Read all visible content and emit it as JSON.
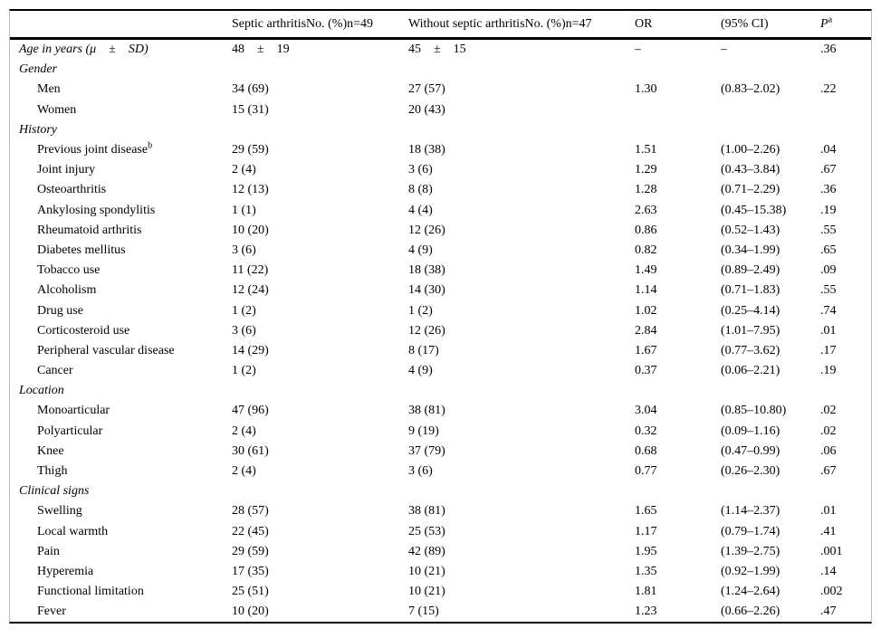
{
  "header": {
    "col_label": "",
    "col_septic": "Septic arthritisNo. (%)n=49",
    "col_without": "Without septic arthritisNo. (%)n=47",
    "col_or": "OR",
    "col_ci": "(95% CI)",
    "col_p": "P",
    "col_p_sup": "a"
  },
  "rows": [
    {
      "label": "Age in years (μ ± SD)",
      "italic": true,
      "indent": false,
      "c1": "48 ± 19",
      "c2": "45 ± 15",
      "or": "–",
      "ci": "–",
      "p": ".36"
    },
    {
      "label": "Gender",
      "italic": true,
      "section": true
    },
    {
      "label": "Men",
      "indent": true,
      "c1": "34 (69)",
      "c2": "27 (57)",
      "or": "1.30",
      "ci": "(0.83–2.02)",
      "p": ".22"
    },
    {
      "label": "Women",
      "indent": true,
      "c1": "15 (31)",
      "c2": "20 (43)",
      "or": "",
      "ci": "",
      "p": ""
    },
    {
      "label": "History",
      "italic": true,
      "section": true
    },
    {
      "label": "Previous joint disease",
      "sup": "b",
      "indent": true,
      "c1": "29 (59)",
      "c2": "18 (38)",
      "or": "1.51",
      "ci": "(1.00–2.26)",
      "p": ".04"
    },
    {
      "label": "Joint injury",
      "indent": true,
      "c1": "2 (4)",
      "c2": "3 (6)",
      "or": "1.29",
      "ci": "(0.43–3.84)",
      "p": ".67"
    },
    {
      "label": "Osteoarthritis",
      "indent": true,
      "c1": "12 (13)",
      "c2": "8 (8)",
      "or": "1.28",
      "ci": "(0.71–2.29)",
      "p": ".36"
    },
    {
      "label": "Ankylosing spondylitis",
      "indent": true,
      "c1": "1 (1)",
      "c2": "4 (4)",
      "or": "2.63",
      "ci": "(0.45–15.38)",
      "p": ".19"
    },
    {
      "label": "Rheumatoid arthritis",
      "indent": true,
      "c1": "10 (20)",
      "c2": "12 (26)",
      "or": "0.86",
      "ci": "(0.52–1.43)",
      "p": ".55"
    },
    {
      "label": "Diabetes mellitus",
      "indent": true,
      "c1": "3 (6)",
      "c2": "4 (9)",
      "or": "0.82",
      "ci": "(0.34–1.99)",
      "p": ".65"
    },
    {
      "label": "Tobacco use",
      "indent": true,
      "c1": "11 (22)",
      "c2": "18 (38)",
      "or": "1.49",
      "ci": "(0.89–2.49)",
      "p": ".09"
    },
    {
      "label": "Alcoholism",
      "indent": true,
      "c1": "12 (24)",
      "c2": "14 (30)",
      "or": "1.14",
      "ci": "(0.71–1.83)",
      "p": ".55"
    },
    {
      "label": "Drug use",
      "indent": true,
      "c1": "1 (2)",
      "c2": "1 (2)",
      "or": "1.02",
      "ci": "(0.25–4.14)",
      "p": ".74"
    },
    {
      "label": "Corticosteroid use",
      "indent": true,
      "c1": "3 (6)",
      "c2": "12 (26)",
      "or": "2.84",
      "ci": "(1.01–7.95)",
      "p": ".01"
    },
    {
      "label": "Peripheral vascular disease",
      "indent": true,
      "c1": "14 (29)",
      "c2": "8 (17)",
      "or": "1.67",
      "ci": "(0.77–3.62)",
      "p": ".17"
    },
    {
      "label": "Cancer",
      "indent": true,
      "c1": "1 (2)",
      "c2": "4 (9)",
      "or": "0.37",
      "ci": "(0.06–2.21)",
      "p": ".19"
    },
    {
      "label": "Location",
      "italic": true,
      "section": true
    },
    {
      "label": "Monoarticular",
      "indent": true,
      "c1": "47 (96)",
      "c2": "38 (81)",
      "or": "3.04",
      "ci": "(0.85–10.80)",
      "p": ".02"
    },
    {
      "label": "Polyarticular",
      "indent": true,
      "c1": "2 (4)",
      "c2": "9 (19)",
      "or": "0.32",
      "ci": "(0.09–1.16)",
      "p": ".02"
    },
    {
      "label": "Knee",
      "indent": true,
      "c1": "30 (61)",
      "c2": "37 (79)",
      "or": "0.68",
      "ci": "(0.47–0.99)",
      "p": ".06"
    },
    {
      "label": "Thigh",
      "indent": true,
      "c1": "2 (4)",
      "c2": "3 (6)",
      "or": "0.77",
      "ci": "(0.26–2.30)",
      "p": ".67"
    },
    {
      "label": "Clinical signs",
      "italic": true,
      "section": true
    },
    {
      "label": "Swelling",
      "indent": true,
      "c1": "28 (57)",
      "c2": "38 (81)",
      "or": "1.65",
      "ci": "(1.14–2.37)",
      "p": ".01"
    },
    {
      "label": "Local warmth",
      "indent": true,
      "c1": "22 (45)",
      "c2": "25 (53)",
      "or": "1.17",
      "ci": "(0.79–1.74)",
      "p": ".41"
    },
    {
      "label": "Pain",
      "indent": true,
      "c1": "29 (59)",
      "c2": "42 (89)",
      "or": "1.95",
      "ci": "(1.39–2.75)",
      "p": ".001"
    },
    {
      "label": "Hyperemia",
      "indent": true,
      "c1": "17 (35)",
      "c2": "10 (21)",
      "or": "1.35",
      "ci": "(0.92–1.99)",
      "p": ".14"
    },
    {
      "label": "Functional limitation",
      "indent": true,
      "c1": "25 (51)",
      "c2": "10 (21)",
      "or": "1.81",
      "ci": "(1.24–2.64)",
      "p": ".002"
    },
    {
      "label": "Fever",
      "indent": true,
      "c1": "10 (20)",
      "c2": "7 (15)",
      "or": "1.23",
      "ci": "(0.66–2.26)",
      "p": ".47"
    }
  ]
}
